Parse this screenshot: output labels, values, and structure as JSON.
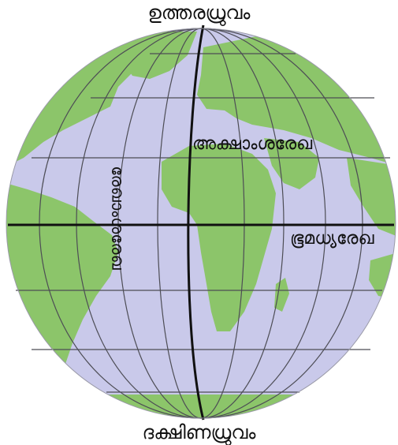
{
  "labels": {
    "north_pole": "ഉത്തരധ്രുവം",
    "south_pole": "ദക്ഷിണധ്രുവം",
    "latitude": "അക്ഷാംശരേഖ",
    "longitude": "രേഖാംശരേഖ",
    "equator": "ഭൂമധ്യരേഖ"
  },
  "colors": {
    "ocean": "#c9c9ea",
    "land": "#8cc56a",
    "grid_line": "#4d4d55",
    "axis_line": "#111111",
    "text": "#111111"
  }
}
